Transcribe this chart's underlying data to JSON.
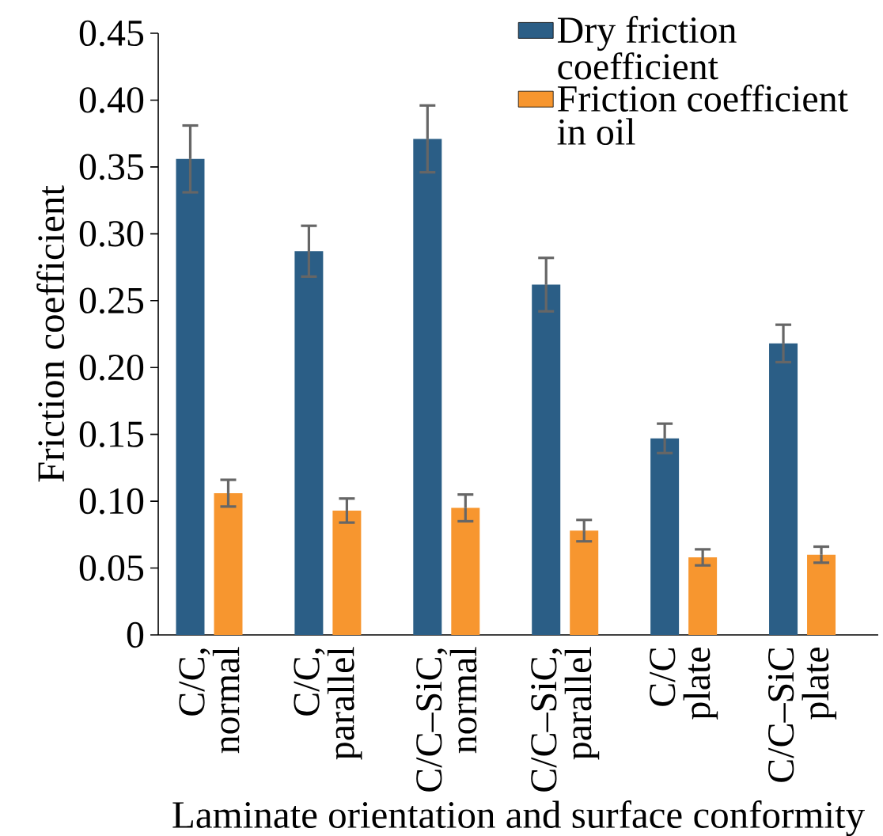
{
  "chart_data": {
    "type": "bar",
    "categories": [
      "C/C, normal",
      "C/C, parallel",
      "C/C–SiC, normal",
      "C/C–SiC, parallel",
      "C/C plate",
      "C/C–SiC plate"
    ],
    "series": [
      {
        "name": "Dry friction coefficient",
        "color": "#2b5e86",
        "values": [
          0.356,
          0.287,
          0.371,
          0.262,
          0.147,
          0.218
        ],
        "errors": [
          0.025,
          0.019,
          0.025,
          0.02,
          0.011,
          0.014
        ]
      },
      {
        "name": "Friction coefficient in oil",
        "color": "#f7962f",
        "values": [
          0.106,
          0.093,
          0.095,
          0.078,
          0.058,
          0.06
        ],
        "errors": [
          0.01,
          0.009,
          0.01,
          0.008,
          0.006,
          0.006
        ]
      }
    ],
    "xlabel": "Laminate orientation and surface conformity",
    "ylabel": "Friction coefficient",
    "ylim": [
      0,
      0.45
    ],
    "yticks": [
      {
        "value": 0,
        "label": "0"
      },
      {
        "value": 0.05,
        "label": "0.05"
      },
      {
        "value": 0.1,
        "label": "0.10"
      },
      {
        "value": 0.15,
        "label": "0.15"
      },
      {
        "value": 0.2,
        "label": "0.20"
      },
      {
        "value": 0.25,
        "label": "0.25"
      },
      {
        "value": 0.3,
        "label": "0.30"
      },
      {
        "value": 0.35,
        "label": "0.35"
      },
      {
        "value": 0.4,
        "label": "0.40"
      },
      {
        "value": 0.45,
        "label": "0.45"
      }
    ],
    "legend": "top right"
  }
}
